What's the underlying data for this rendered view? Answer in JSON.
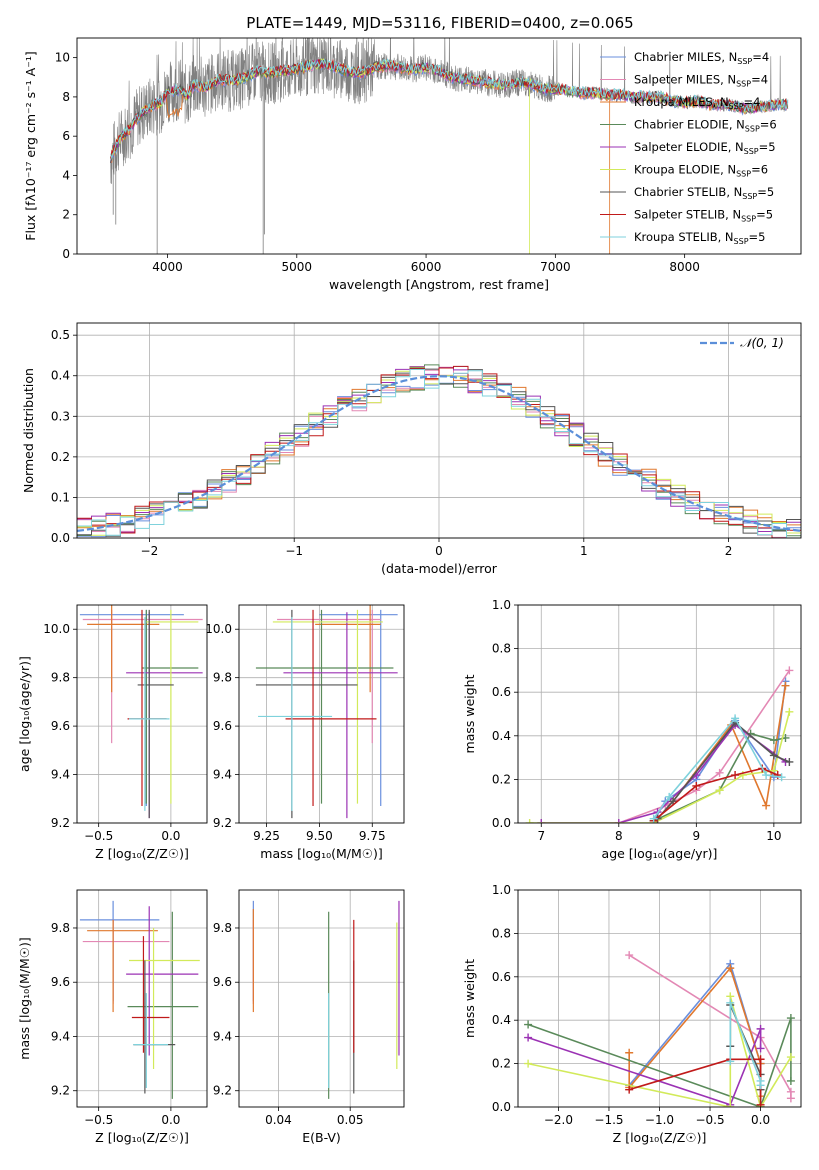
{
  "title": "PLATE=1449, MJD=53116, FIBERID=0400, z=0.065",
  "colors": {
    "chabrier_miles": "#6a8fdd",
    "salpeter_miles": "#e388b4",
    "kroupa_miles": "#e0782e",
    "chabrier_elodie": "#5a8a5a",
    "salpeter_elodie": "#9b32b4",
    "kroupa_elodie": "#d2ea5a",
    "chabrier_stelib": "#555555",
    "salpeter_stelib": "#c01a1a",
    "kroupa_stelib": "#7fd2dc",
    "data": "#808080",
    "normal": "#5b8fd9"
  },
  "chart_data": [
    {
      "id": "spectrum",
      "type": "line",
      "title": "PLATE=1449, MJD=53116, FIBERID=0400, z=0.065",
      "xlabel": "wavelength [Angstrom, rest frame]",
      "ylabel": "Flux [fλ10⁻¹⁷ erg cm⁻² s⁻¹ A⁻¹]",
      "xlim": [
        3300,
        8900
      ],
      "ylim": [
        0,
        11
      ],
      "xticks": [
        4000,
        5000,
        6000,
        7000,
        8000
      ],
      "yticks": [
        0,
        2,
        4,
        6,
        8,
        10
      ],
      "legend": "upper-right",
      "series": [
        {
          "name": "Chabrier MILES, N_SSP=4",
          "label_main": "Chabrier MILES, N",
          "label_sub": "SSP",
          "label_tail": "=4"
        },
        {
          "name": "Salpeter MILES, N_SSP=4",
          "label_main": "Salpeter MILES, N",
          "label_sub": "SSP",
          "label_tail": "=4"
        },
        {
          "name": "Kroupa MILES, N_SSP=4",
          "label_main": "Kroupa MILES, N",
          "label_sub": "SSP",
          "label_tail": "=4"
        },
        {
          "name": "Chabrier ELODIE, N_SSP=6",
          "label_main": "Chabrier ELODIE, N",
          "label_sub": "SSP",
          "label_tail": "=6"
        },
        {
          "name": "Salpeter ELODIE, N_SSP=5",
          "label_main": "Salpeter ELODIE, N",
          "label_sub": "SSP",
          "label_tail": "=5"
        },
        {
          "name": "Kroupa ELODIE, N_SSP=6",
          "label_main": "Kroupa ELODIE, N",
          "label_sub": "SSP",
          "label_tail": "=6"
        },
        {
          "name": "Chabrier STELIB, N_SSP=5",
          "label_main": "Chabrier STELIB, N",
          "label_sub": "SSP",
          "label_tail": "=5"
        },
        {
          "name": "Salpeter STELIB, N_SSP=5",
          "label_main": "Salpeter STELIB, N",
          "label_sub": "SSP",
          "label_tail": "=5"
        },
        {
          "name": "Kroupa STELIB, N_SSP=5",
          "label_main": "Kroupa STELIB, N",
          "label_sub": "SSP",
          "label_tail": "=5"
        }
      ],
      "model_curve": {
        "x": [
          3560,
          3600,
          3650,
          3700,
          3750,
          3800,
          3850,
          3900,
          3950,
          4000,
          4050,
          4100,
          4150,
          4200,
          4300,
          4400,
          4500,
          4600,
          4700,
          4800,
          4900,
          5000,
          5100,
          5200,
          5300,
          5400,
          5500,
          5600,
          5700,
          5800,
          5900,
          6000,
          6100,
          6200,
          6300,
          6400,
          6500,
          6600,
          6700,
          6800,
          6900,
          7000,
          7100,
          7200,
          7300,
          7400,
          7500,
          7600,
          7700,
          7800,
          7900,
          8000,
          8100,
          8200,
          8300,
          8400,
          8500,
          8600,
          8700,
          8800
        ],
        "y": [
          4.8,
          5.5,
          6.0,
          6.3,
          6.8,
          7.2,
          7.4,
          7.6,
          7.7,
          8.3,
          8.3,
          8.4,
          8.0,
          8.6,
          8.5,
          8.9,
          8.8,
          9.0,
          9.3,
          9.2,
          9.3,
          9.4,
          9.6,
          9.7,
          9.5,
          9.3,
          9.2,
          9.5,
          9.6,
          9.5,
          9.4,
          9.5,
          9.3,
          9.0,
          8.9,
          8.8,
          8.7,
          8.6,
          8.7,
          8.7,
          8.4,
          8.4,
          8.3,
          8.2,
          8.2,
          8.1,
          8.1,
          8.0,
          8.0,
          8.0,
          7.8,
          7.7,
          7.8,
          7.6,
          7.6,
          7.5,
          7.4,
          7.5,
          7.6,
          7.6
        ]
      }
    },
    {
      "id": "residuals",
      "type": "bar",
      "xlabel": "(data-model)/error",
      "ylabel": "Normed distribution",
      "xlim": [
        -2.5,
        2.5
      ],
      "ylim": [
        0,
        0.53
      ],
      "xticks": [
        -2,
        -1,
        0,
        1,
        2
      ],
      "yticks": [
        0.0,
        0.1,
        0.2,
        0.3,
        0.4,
        0.5
      ],
      "legend": "upper-right",
      "normal_label": "𝒩(0, 1)",
      "bin_width": 0.1,
      "bin_start": -2.5
    },
    {
      "id": "age_vs_Z",
      "type": "scatter",
      "xlabel": "Z [log₁₀(Z/Z☉)]",
      "ylabel": "age  [log₁₀(age/yr)]",
      "xlim": [
        -0.65,
        0.25
      ],
      "ylim": [
        9.2,
        10.1
      ],
      "xticks": [
        -0.5,
        0.0
      ],
      "yticks": [
        9.2,
        9.4,
        9.6,
        9.8,
        10.0
      ],
      "points": [
        {
          "x": -0.17,
          "y": 10.06,
          "xlo": -0.63,
          "xhi": 0.09,
          "ylo": 9.27,
          "yhi": 10.08
        },
        {
          "x": -0.41,
          "y": 10.04,
          "xlo": -0.61,
          "xhi": 0.22,
          "ylo": 9.53,
          "yhi": 10.08
        },
        {
          "x": -0.41,
          "y": 10.02,
          "xlo": -0.58,
          "xhi": -0.08,
          "ylo": 9.74,
          "yhi": 10.1
        },
        {
          "x": -0.17,
          "y": 9.84,
          "xlo": -0.2,
          "xhi": 0.19,
          "ylo": 9.28,
          "yhi": 10.08
        },
        {
          "x": -0.15,
          "y": 9.82,
          "xlo": -0.31,
          "xhi": 0.22,
          "ylo": 9.22,
          "yhi": 10.07
        },
        {
          "x": 0.0,
          "y": 10.03,
          "xlo": -0.17,
          "xhi": 0.19,
          "ylo": 9.28,
          "yhi": 10.08
        },
        {
          "x": -0.15,
          "y": 9.77,
          "xlo": -0.23,
          "xhi": 0.02,
          "ylo": 9.22,
          "yhi": 10.08
        },
        {
          "x": -0.2,
          "y": 9.63,
          "xlo": -0.3,
          "xhi": -0.03,
          "ylo": 9.27,
          "yhi": 10.08
        },
        {
          "x": -0.18,
          "y": 9.63,
          "xlo": -0.29,
          "xhi": -0.01,
          "ylo": 9.25,
          "yhi": 10.05
        }
      ]
    },
    {
      "id": "age_vs_mass",
      "type": "scatter",
      "xlabel": "mass [log₁₀(M/M☉)]",
      "ylabel": "",
      "xlim": [
        9.12,
        9.9
      ],
      "ylim": [
        9.2,
        10.1
      ],
      "xticks": [
        9.25,
        9.5,
        9.75
      ],
      "yticks": [
        9.2,
        9.4,
        9.6,
        9.8,
        10.0
      ],
      "points": [
        {
          "x": 9.79,
          "y": 10.06,
          "xlo": 9.5,
          "xhi": 9.87,
          "ylo": 9.27,
          "yhi": 10.08
        },
        {
          "x": 9.75,
          "y": 10.04,
          "xlo": 9.3,
          "xhi": 9.79,
          "ylo": 9.53,
          "yhi": 10.08
        },
        {
          "x": 9.74,
          "y": 10.02,
          "xlo": 9.48,
          "xhi": 9.79,
          "ylo": 9.74,
          "yhi": 10.1
        },
        {
          "x": 9.51,
          "y": 9.84,
          "xlo": 9.2,
          "xhi": 9.85,
          "ylo": 9.28,
          "yhi": 10.08
        },
        {
          "x": 9.63,
          "y": 9.82,
          "xlo": 9.33,
          "xhi": 9.87,
          "ylo": 9.22,
          "yhi": 10.07
        },
        {
          "x": 9.68,
          "y": 10.03,
          "xlo": 9.28,
          "xhi": 9.8,
          "ylo": 9.28,
          "yhi": 10.08
        },
        {
          "x": 9.37,
          "y": 9.77,
          "xlo": 9.2,
          "xhi": 9.68,
          "ylo": 9.22,
          "yhi": 10.08
        },
        {
          "x": 9.47,
          "y": 9.63,
          "xlo": 9.34,
          "xhi": 9.77,
          "ylo": 9.27,
          "yhi": 10.08
        },
        {
          "x": 9.37,
          "y": 9.64,
          "xlo": 9.21,
          "xhi": 9.56,
          "ylo": 9.25,
          "yhi": 10.05
        }
      ]
    },
    {
      "id": "weight_vs_age",
      "type": "line",
      "xlabel": "age  [log₁₀(age/yr)]",
      "ylabel": "mass weight",
      "xlim": [
        6.7,
        10.35
      ],
      "ylim": [
        0,
        1
      ],
      "xticks": [
        7,
        8,
        9,
        10
      ],
      "yticks": [
        0.0,
        0.2,
        0.4,
        0.6,
        0.8,
        1.0
      ],
      "series": [
        {
          "x": [
            8.45,
            8.6,
            9.0,
            9.5,
            10.0,
            10.15
          ],
          "y": [
            0.01,
            0.1,
            0.2,
            0.47,
            0.21,
            0.65
          ]
        },
        {
          "x": [
            8.0,
            8.6,
            9.0,
            9.3,
            10.2
          ],
          "y": [
            0.0,
            0.08,
            0.15,
            0.23,
            0.7
          ]
        },
        {
          "x": [
            8.5,
            8.7,
            9.45,
            9.9,
            10.15
          ],
          "y": [
            0.02,
            0.1,
            0.45,
            0.08,
            0.63
          ]
        },
        {
          "x": [
            8.45,
            9.3,
            9.7,
            10.0,
            10.15
          ],
          "y": [
            0.01,
            0.15,
            0.41,
            0.38,
            0.39
          ]
        },
        {
          "x": [
            7.0,
            8.0,
            8.5,
            9.0,
            9.5,
            10.15
          ],
          "y": [
            0.0,
            0.0,
            0.05,
            0.22,
            0.45,
            0.28
          ]
        },
        {
          "x": [
            6.85,
            8.45,
            9.3,
            9.6,
            10.0,
            10.2
          ],
          "y": [
            0.0,
            0.0,
            0.15,
            0.22,
            0.24,
            0.51
          ]
        },
        {
          "x": [
            8.5,
            8.7,
            9.5,
            10.0,
            10.2
          ],
          "y": [
            0.02,
            0.1,
            0.46,
            0.31,
            0.28
          ]
        },
        {
          "x": [
            8.45,
            9.0,
            9.5,
            9.85,
            10.05
          ],
          "y": [
            0.01,
            0.17,
            0.22,
            0.25,
            0.22
          ]
        },
        {
          "x": [
            8.45,
            8.65,
            9.5,
            9.9,
            10.1
          ],
          "y": [
            0.02,
            0.12,
            0.48,
            0.22,
            0.21
          ]
        }
      ]
    },
    {
      "id": "mass_vs_Z",
      "type": "scatter",
      "xlabel": "Z [log₁₀(Z/Z☉)]",
      "ylabel": "mass [log₁₀(M/M☉)]",
      "xlim": [
        -0.65,
        0.25
      ],
      "ylim": [
        9.14,
        9.94
      ],
      "xticks": [
        -0.5,
        0.0
      ],
      "yticks": [
        9.2,
        9.4,
        9.6,
        9.8
      ],
      "points": [
        {
          "x": -0.4,
          "y": 9.83,
          "xlo": -0.63,
          "xhi": -0.08,
          "ylo": 9.53,
          "yhi": 9.9
        },
        {
          "x": -0.4,
          "y": 9.75,
          "xlo": -0.61,
          "xhi": -0.01,
          "ylo": 9.52,
          "yhi": 9.83
        },
        {
          "x": -0.4,
          "y": 9.79,
          "xlo": -0.58,
          "xhi": -0.09,
          "ylo": 9.49,
          "yhi": 9.83
        },
        {
          "x": 0.01,
          "y": 9.51,
          "xlo": -0.3,
          "xhi": 0.19,
          "ylo": 9.17,
          "yhi": 9.86
        },
        {
          "x": -0.15,
          "y": 9.63,
          "xlo": -0.31,
          "xhi": 0.19,
          "ylo": 9.33,
          "yhi": 9.88
        },
        {
          "x": -0.12,
          "y": 9.68,
          "xlo": -0.29,
          "xhi": 0.2,
          "ylo": 9.28,
          "yhi": 9.8
        },
        {
          "x": -0.18,
          "y": 9.37,
          "xlo": -0.26,
          "xhi": 0.03,
          "ylo": 9.19,
          "yhi": 9.68
        },
        {
          "x": -0.19,
          "y": 9.47,
          "xlo": -0.27,
          "xhi": -0.01,
          "ylo": 9.34,
          "yhi": 9.77
        },
        {
          "x": -0.17,
          "y": 9.37,
          "xlo": -0.26,
          "xhi": -0.02,
          "ylo": 9.21,
          "yhi": 9.56
        }
      ]
    },
    {
      "id": "mass_vs_ebv",
      "type": "scatter",
      "xlabel": "E(B-V)",
      "ylabel": "",
      "xlim": [
        0.0345,
        0.0575
      ],
      "ylim": [
        9.14,
        9.94
      ],
      "xticks": [
        0.04,
        0.05
      ],
      "yticks": [
        9.2,
        9.4,
        9.6,
        9.8
      ],
      "points": [
        {
          "x": 0.0365,
          "y": 9.83,
          "ylo": 9.53,
          "yhi": 9.9
        },
        {
          "x": 0.0365,
          "y": 9.75,
          "ylo": 9.52,
          "yhi": 9.83
        },
        {
          "x": 0.0365,
          "y": 9.79,
          "ylo": 9.49,
          "yhi": 9.87
        },
        {
          "x": 0.047,
          "y": 9.51,
          "ylo": 9.17,
          "yhi": 9.86
        },
        {
          "x": 0.0568,
          "y": 9.63,
          "ylo": 9.33,
          "yhi": 9.9
        },
        {
          "x": 0.0565,
          "y": 9.68,
          "ylo": 9.28,
          "yhi": 9.82
        },
        {
          "x": 0.0505,
          "y": 9.37,
          "ylo": 9.19,
          "yhi": 9.68
        },
        {
          "x": 0.0505,
          "y": 9.47,
          "ylo": 9.34,
          "yhi": 9.83
        },
        {
          "x": 0.047,
          "y": 9.37,
          "ylo": 9.21,
          "yhi": 9.56
        }
      ]
    },
    {
      "id": "weight_vs_Z",
      "type": "line",
      "xlabel": "Z [log₁₀(Z/Z☉)]",
      "ylabel": "mass weight",
      "xlim": [
        -2.4,
        0.4
      ],
      "ylim": [
        0,
        1
      ],
      "xticks": [
        -2.0,
        -1.5,
        -1.0,
        -0.5,
        0.0
      ],
      "yticks": [
        0.0,
        0.2,
        0.4,
        0.6,
        0.8,
        1.0
      ],
      "series": [
        {
          "x": [
            -1.3,
            -0.3,
            0.0,
            0.0
          ],
          "y": [
            0.1,
            0.66,
            0.2,
            0.0
          ]
        },
        {
          "x": [
            -1.3,
            0.0,
            0.3,
            0.3
          ],
          "y": [
            0.7,
            0.32,
            0.07,
            0.04
          ]
        },
        {
          "x": [
            -1.3,
            -1.3,
            -0.3,
            0.0,
            0.0
          ],
          "y": [
            0.25,
            0.09,
            0.64,
            0.2,
            0.05
          ]
        },
        {
          "x": [
            -2.3,
            0.0,
            0.3,
            0.3
          ],
          "y": [
            0.38,
            0.0,
            0.41,
            0.12
          ]
        },
        {
          "x": [
            -2.3,
            -0.3,
            0.0,
            0.0
          ],
          "y": [
            0.32,
            0.01,
            0.36,
            0.27
          ]
        },
        {
          "x": [
            -2.3,
            -0.3,
            -0.3,
            0.0,
            0.3
          ],
          "y": [
            0.2,
            0.0,
            0.51,
            0.0,
            0.23
          ]
        },
        {
          "x": [
            -0.3,
            -0.3,
            0.0,
            0.0
          ],
          "y": [
            0.28,
            0.47,
            0.15,
            0.08
          ]
        },
        {
          "x": [
            -1.3,
            -0.3,
            0.0,
            0.0
          ],
          "y": [
            0.08,
            0.22,
            0.22,
            0.01
          ]
        },
        {
          "x": [
            -0.3,
            -0.3,
            0.0,
            0.0
          ],
          "y": [
            0.21,
            0.48,
            0.12,
            0.1
          ]
        }
      ]
    }
  ]
}
